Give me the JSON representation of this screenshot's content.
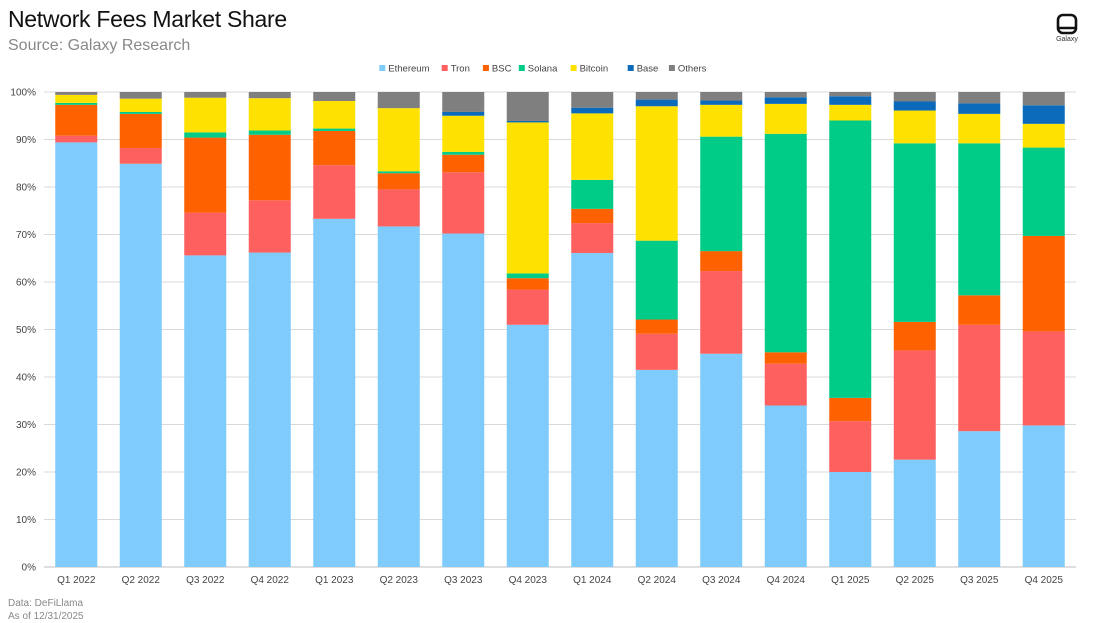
{
  "header": {
    "title": "Network Fees Market Share",
    "subtitle": "Source: Galaxy Research",
    "logo_text": "Galaxy"
  },
  "footer": {
    "line1": "Data: DeFiLlama",
    "line2": "As of 12/31/2025"
  },
  "chart_data": {
    "type": "bar",
    "stacked": true,
    "title": "Network Fees Market Share",
    "xlabel": "",
    "ylabel": "",
    "ylim": [
      0,
      100
    ],
    "y_ticks": [
      "0%",
      "10%",
      "20%",
      "30%",
      "40%",
      "50%",
      "60%",
      "70%",
      "80%",
      "90%",
      "100%"
    ],
    "grid": true,
    "legend_position": "top",
    "categories": [
      "Q1 2022",
      "Q2 2022",
      "Q3 2022",
      "Q4 2022",
      "Q1 2023",
      "Q2 2023",
      "Q3 2023",
      "Q4 2023",
      "Q1 2024",
      "Q2 2024",
      "Q3 2024",
      "Q4 2024",
      "Q1 2025",
      "Q2 2025",
      "Q3 2025",
      "Q4 2025"
    ],
    "series": [
      {
        "name": "Ethereum",
        "color": "#7fcbfb",
        "values": [
          89.4,
          84.9,
          65.6,
          66.2,
          73.3,
          71.7,
          70.2,
          51.0,
          66.1,
          41.5,
          44.9,
          34.0,
          20.0,
          22.6,
          28.6,
          29.8
        ]
      },
      {
        "name": "Tron",
        "color": "#fe5f5f",
        "values": [
          1.4,
          3.3,
          9.0,
          11.0,
          11.3,
          7.8,
          12.9,
          7.4,
          6.3,
          7.6,
          17.4,
          8.8,
          10.7,
          23.0,
          22.4,
          19.8
        ]
      },
      {
        "name": "BSC",
        "color": "#fe6100",
        "values": [
          6.5,
          7.2,
          15.8,
          13.8,
          7.2,
          3.4,
          3.7,
          2.4,
          3.0,
          3.0,
          4.2,
          2.4,
          4.9,
          6.0,
          6.2,
          20.1
        ]
      },
      {
        "name": "Solana",
        "color": "#00cc88",
        "values": [
          0.4,
          0.4,
          1.1,
          0.9,
          0.5,
          0.4,
          0.6,
          1.0,
          6.1,
          16.6,
          24.1,
          46.0,
          58.4,
          37.6,
          32.0,
          18.6
        ]
      },
      {
        "name": "Bitcoin",
        "color": "#ffe100",
        "values": [
          1.7,
          2.8,
          7.3,
          6.8,
          5.8,
          13.3,
          7.6,
          31.8,
          14.0,
          28.3,
          6.7,
          6.3,
          3.3,
          6.9,
          6.2,
          5.0
        ]
      },
      {
        "name": "Base",
        "color": "#0b6ab9",
        "values": [
          0.0,
          0.0,
          0.0,
          0.0,
          0.0,
          0.0,
          0.8,
          0.3,
          1.2,
          1.4,
          0.9,
          1.4,
          1.8,
          1.9,
          2.2,
          3.9
        ]
      },
      {
        "name": "Others",
        "color": "#7f7f7f",
        "values": [
          0.6,
          1.4,
          1.2,
          1.3,
          1.9,
          3.4,
          4.2,
          6.1,
          3.3,
          1.6,
          1.8,
          1.1,
          0.9,
          2.0,
          2.4,
          2.8
        ]
      }
    ]
  }
}
